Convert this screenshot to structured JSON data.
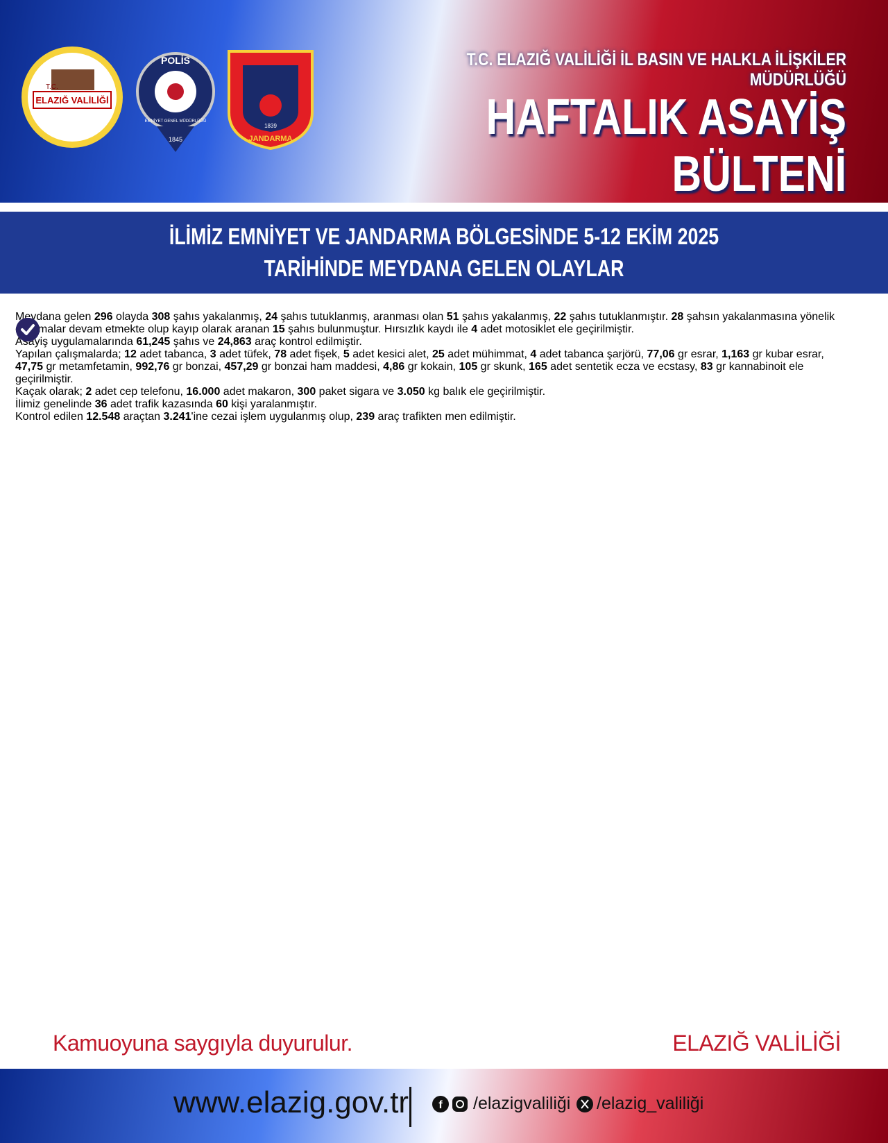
{
  "header": {
    "logos": {
      "valilik": {
        "prefix": "T.C.",
        "name": "ELAZIĞ VALİLİĞİ"
      },
      "polis": {
        "top": "POLİS",
        "ring": "EMNİYET GENEL MÜDÜRLÜĞÜ",
        "year": "1845"
      },
      "jandarma": {
        "name": "JANDARMA",
        "year": "1839"
      }
    },
    "subtitle": "T.C. ELAZIĞ VALİLİĞİ İL BASIN VE HALKLA İLİŞKİLER MÜDÜRLÜĞÜ",
    "title": "HAFTALIK ASAYİŞ BÜLTENİ"
  },
  "banner": {
    "lines": [
      "İLİMİZ EMNİYET VE JANDARMA BÖLGESİNDE 5-12 EKİM 2025",
      "TARİHİNDE MEYDANA GELEN OLAYLAR"
    ]
  },
  "paragraphs": [
    [
      "Meydana gelen ",
      "296",
      " olayda ",
      "308",
      " şahıs yakalanmış, ",
      "24",
      " şahıs tutuklanmış, aranması olan ",
      "51",
      " şahıs yakalanmış, ",
      "22",
      " şahıs tutuklanmıştır. ",
      "28",
      " şahsın yakalanmasına yönelik çalışmalar devam etmekte olup kayıp olarak aranan ",
      "15",
      " şahıs bulunmuştur. Hırsızlık kaydı ile ",
      "4",
      " adet motosiklet ele geçirilmiştir."
    ],
    [
      "Asayiş uygulamalarında ",
      "61,245",
      " şahıs ve ",
      "24,863",
      " araç kontrol edilmiştir."
    ],
    [
      "Yapılan çalışmalarda; ",
      "12",
      " adet tabanca, ",
      "3",
      " adet tüfek, ",
      "78",
      " adet fişek, ",
      "5",
      " adet kesici alet, ",
      "25",
      " adet mühimmat, ",
      "4",
      " adet tabanca şarjörü, ",
      "77,06",
      " gr esrar, ",
      "1,163",
      " gr kubar esrar, ",
      "47,75",
      " gr metamfetamin, ",
      "992,76",
      " gr bonzai, ",
      "457,29",
      " gr bonzai ham maddesi, ",
      "4,86",
      " gr kokain, ",
      "105",
      " gr skunk, ",
      "165",
      " adet sentetik ecza ve ecstasy, ",
      "83",
      " gr kannabinoit ele geçirilmiştir."
    ],
    [
      "Kaçak olarak; ",
      "2",
      " adet cep telefonu, ",
      "16.000",
      " adet makaron, ",
      "300",
      " paket sigara ve ",
      "3.050",
      " kg balık ele geçirilmiştir."
    ],
    [
      "İlimiz genelinde ",
      "36",
      " adet trafik kazasında ",
      "60",
      " kişi yaralanmıştır."
    ],
    [
      "Kontrol edilen ",
      "12.548",
      " araçtan ",
      "3.241",
      "'ine cezai işlem uygulanmış olup, ",
      "239",
      " araç trafikten men edilmiştir."
    ]
  ],
  "closing": {
    "left": "Kamuoyuna saygıyla duyurulur.",
    "right": "ELAZIĞ VALİLİĞİ"
  },
  "footer": {
    "website": "www.elazig.gov.tr",
    "facebook_instagram": "/elazigvaliliği",
    "x": "/elazig_valiliği"
  }
}
